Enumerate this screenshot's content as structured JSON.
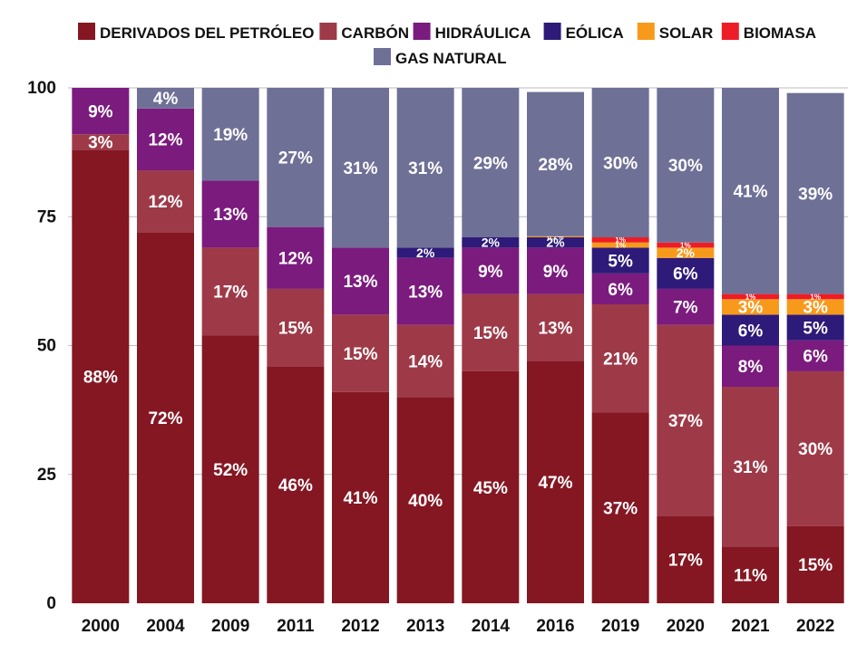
{
  "chart_data": {
    "type": "bar",
    "stacked": true,
    "title": "",
    "xlabel": "",
    "ylabel": "",
    "ylim": [
      0,
      100
    ],
    "yticks": [
      0,
      25,
      50,
      75,
      100
    ],
    "grid": "horizontal",
    "legend_position": "top",
    "categories": [
      "2000",
      "2004",
      "2009",
      "2011",
      "2012",
      "2013",
      "2014",
      "2016",
      "2019",
      "2020",
      "2021",
      "2022"
    ],
    "series": [
      {
        "name": "DERIVADOS DEL PETRÓLEO",
        "color": "#841722",
        "values": [
          88,
          72,
          52,
          46,
          41,
          40,
          45,
          47,
          37,
          17,
          11,
          15
        ],
        "labels": [
          "88%",
          "72%",
          "52%",
          "46%",
          "41%",
          "40%",
          "45%",
          "47%",
          "37%",
          "17%",
          "11%",
          "15%"
        ]
      },
      {
        "name": "CARBÓN",
        "color": "#9e3a48",
        "values": [
          3,
          12,
          17,
          15,
          15,
          14,
          15,
          13,
          21,
          37,
          31,
          30
        ],
        "labels": [
          "3%",
          "12%",
          "17%",
          "15%",
          "15%",
          "14%",
          "15%",
          "13%",
          "21%",
          "37%",
          "31%",
          "30%"
        ]
      },
      {
        "name": "HIDRÁULICA",
        "color": "#7b1b7e",
        "values": [
          9,
          12,
          13,
          12,
          13,
          13,
          9,
          9,
          6,
          7,
          8,
          6
        ],
        "labels": [
          "9%",
          "12%",
          "13%",
          "12%",
          "13%",
          "13%",
          "9%",
          "9%",
          "6%",
          "7%",
          "8%",
          "6%"
        ]
      },
      {
        "name": "EÓLICA",
        "color": "#2e1a78",
        "values": [
          0,
          0,
          0,
          0,
          0,
          2,
          2,
          2,
          5,
          6,
          6,
          5
        ],
        "labels": [
          "",
          "",
          "",
          "",
          "",
          "2%",
          "2%",
          "2%",
          "5%",
          "6%",
          "6%",
          "5%"
        ]
      },
      {
        "name": "SOLAR",
        "color": "#f79a1c",
        "values": [
          0,
          0,
          0,
          0,
          0,
          0,
          0,
          0.2,
          1,
          2,
          3,
          3
        ],
        "labels": [
          "",
          "",
          "",
          "",
          "",
          "",
          "",
          "0.2%",
          "1%",
          "2%",
          "3%",
          "3%"
        ]
      },
      {
        "name": "BIOMASA",
        "color": "#ee1c25",
        "values": [
          0,
          0,
          0,
          0,
          0,
          0,
          0,
          0,
          1,
          1,
          1,
          1
        ],
        "labels": [
          "",
          "",
          "",
          "",
          "",
          "",
          "",
          "",
          "1%",
          "1%",
          "1%",
          "1%"
        ]
      },
      {
        "name": "GAS NATURAL",
        "color": "#6f7096",
        "values": [
          0,
          4,
          19,
          27,
          31,
          31,
          29,
          28,
          30,
          30,
          41,
          39
        ],
        "labels": [
          "",
          "4%",
          "19%",
          "27%",
          "31%",
          "31%",
          "29%",
          "28%",
          "30%",
          "30%",
          "41%",
          "39%"
        ]
      }
    ]
  }
}
